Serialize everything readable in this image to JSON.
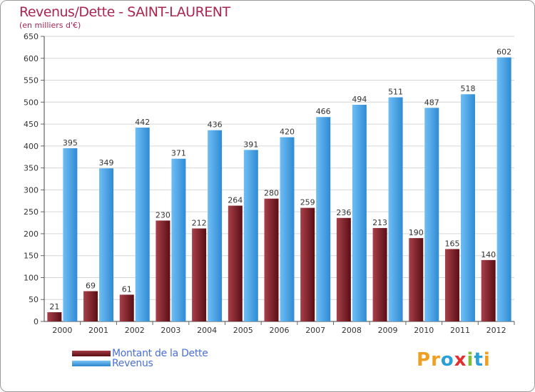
{
  "header": {
    "title": "Revenus/Dette - SAINT-LAURENT",
    "subtitle": "(en milliers d'€)"
  },
  "chart_data": {
    "type": "bar",
    "categories": [
      "2000",
      "2001",
      "2002",
      "2003",
      "2004",
      "2005",
      "2006",
      "2007",
      "2008",
      "2009",
      "2010",
      "2011",
      "2012"
    ],
    "series": [
      {
        "name": "Montant de la Dette",
        "color": "#7a1e26",
        "values": [
          21,
          69,
          61,
          230,
          212,
          264,
          280,
          259,
          236,
          213,
          190,
          165,
          140
        ]
      },
      {
        "name": "Revenus",
        "color": "#4aa3e8",
        "values": [
          395,
          349,
          442,
          371,
          436,
          391,
          420,
          466,
          494,
          511,
          487,
          518,
          602
        ]
      }
    ],
    "ylim": [
      0,
      650
    ],
    "yticks": [
      0,
      50,
      100,
      150,
      200,
      250,
      300,
      350,
      400,
      450,
      500,
      550,
      600,
      650
    ],
    "grid": true,
    "legend_position": "bottom-left"
  },
  "legend": {
    "items": [
      {
        "label": "Montant de la Dette",
        "color": "#7a1e26"
      },
      {
        "label": "Revenus",
        "color": "#4aa3e8"
      }
    ]
  },
  "logo": {
    "letters": [
      {
        "ch": "P",
        "color": "#f0a020"
      },
      {
        "ch": "r",
        "color": "#f0a020"
      },
      {
        "ch": "o",
        "color": "#2aa0d8"
      },
      {
        "ch": "x",
        "color": "#e03030"
      },
      {
        "ch": "i",
        "color": "#80c030"
      },
      {
        "ch": "t",
        "color": "#2aa0d8"
      },
      {
        "ch": "i",
        "color": "#f0a020"
      }
    ]
  }
}
